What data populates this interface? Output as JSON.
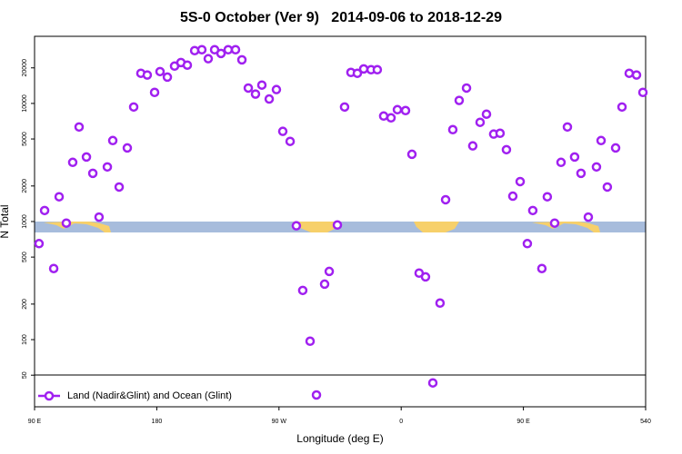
{
  "chart_data": {
    "type": "scatter",
    "title": "5S-0 October (Ver 9)   2014-09-06 to 2018-12-29",
    "xlabel": "Longitude (deg E)",
    "ylabel": "N Total",
    "xlim": [
      90,
      540
    ],
    "xticks": [
      {
        "value": 90,
        "label": "90 E"
      },
      180,
      {
        "value": 270,
        "label": "90 W"
      },
      {
        "value": 360,
        "label": "0"
      },
      {
        "value": 450,
        "label": "90 E"
      },
      540
    ],
    "ylim": [
      27,
      37000
    ],
    "ylog": true,
    "yticks": [
      50,
      100,
      200,
      500,
      1000,
      2000,
      5000,
      10000,
      20000
    ],
    "legend": "bottom-left",
    "series": [
      {
        "name": "Land (Nadir&Glint) and Ocean (Glint)",
        "color": "#a020f0",
        "x": [
          93.3,
          97.4,
          104.1,
          108.1,
          113.4,
          118.1,
          122.8,
          128.2,
          132.9,
          137.5,
          143.6,
          147.6,
          152.3,
          158.3,
          163.0,
          168.3,
          173.0,
          178.4,
          182.4,
          187.8,
          193.1,
          197.8,
          202.5,
          207.9,
          213.2,
          217.9,
          222.6,
          227.3,
          232.6,
          238.0,
          242.7,
          247.4,
          252.7,
          257.4,
          262.8,
          268.1,
          272.8,
          278.2,
          282.8,
          287.5,
          292.9,
          297.6,
          303.6,
          307.0,
          313.0,
          318.3,
          323.0,
          327.7,
          332.4,
          337.8,
          342.4,
          347.1,
          352.5,
          357.2,
          363.2,
          367.9,
          373.2,
          377.9,
          383.3,
          388.6,
          392.7,
          398.0,
          402.7,
          408.1,
          412.7,
          418.1,
          422.8,
          428.1,
          432.8,
          437.5,
          442.2,
          447.6,
          452.9,
          456.9,
          463.6,
          467.6,
          473.0,
          477.7,
          482.4,
          487.7,
          492.4,
          497.8,
          503.8,
          507.2,
          511.8,
          517.9,
          522.6,
          527.9,
          533.3,
          538.0
        ],
        "values": [
          650,
          1240,
          400,
          1620,
          970,
          3170,
          6320,
          3520,
          2560,
          1090,
          2900,
          4850,
          1960,
          4200,
          9330,
          18000,
          17400,
          12400,
          18600,
          16700,
          20700,
          22200,
          21100,
          28000,
          28500,
          23900,
          28500,
          26500,
          28500,
          28500,
          23400,
          13500,
          12000,
          14300,
          10900,
          13100,
          5800,
          4770,
          920,
          261,
          97,
          34,
          295,
          378,
          935,
          9330,
          18300,
          18000,
          19600,
          19300,
          19300,
          7820,
          7550,
          8850,
          8700,
          3710,
          366,
          340,
          43,
          204,
          1530,
          6000,
          10600,
          13500,
          4370,
          6920,
          8110,
          5500,
          5590,
          4060,
          1640,
          2180,
          650,
          1240,
          400,
          1620,
          970,
          3170,
          6320,
          3520,
          2560,
          1090,
          2900,
          4850,
          1960,
          4200,
          9330,
          18000,
          17400,
          12400
        ]
      }
    ]
  }
}
